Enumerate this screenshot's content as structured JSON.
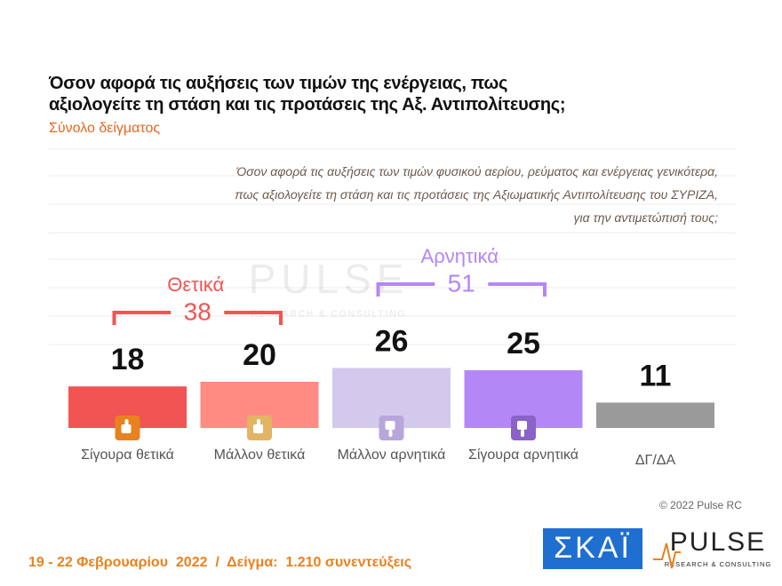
{
  "chart_data": {
    "type": "bar",
    "title": "Όσον αφορά τις αυξήσεις των τιμών της ενέργειας, πως αξιολογείτε τη στάση και τις προτάσεις της Αξ. Αντιπολίτευσης;",
    "subtitle": "Σύνολο δείγματος",
    "question": [
      "Όσον αφορά τις αυξήσεις των τιμών φυσικού αερίου, ρεύματος και ενέργειας γενικότερα,",
      "πως αξιολογείτε τη στάση και τις προτάσεις της Αξιωματικής Αντιπολίτευσης του ΣΥΡΙΖΑ,",
      "για την αντιμετώπισή τους;"
    ],
    "categories": [
      "Σίγουρα θετικά",
      "Μάλλον θετικά",
      "Μάλλον αρνητικά",
      "Σίγουρα αρνητικά",
      "ΔΓ/ΔΑ"
    ],
    "values": [
      18,
      20,
      26,
      25,
      11
    ],
    "colors": [
      "#f25353",
      "#ff8b82",
      "#d3c9ec",
      "#b487f6",
      "#9a9a9a"
    ],
    "groups": [
      {
        "label": "Θετικά",
        "value": 38,
        "color": "#f25353"
      },
      {
        "label": "Αρνητικά",
        "value": 51,
        "color": "#b487f6"
      }
    ],
    "copyright": "© 2022 Pulse RC",
    "footer": "19 - 22 Φεβρουαρίου  2022  /  Δείγμα:  1.210 συνεντεύξεις",
    "logos": {
      "skai": "ΣΚΑΪ",
      "pulse": "PULSE",
      "pulse_tagline": "RESEARCH & CONSULTING"
    }
  }
}
